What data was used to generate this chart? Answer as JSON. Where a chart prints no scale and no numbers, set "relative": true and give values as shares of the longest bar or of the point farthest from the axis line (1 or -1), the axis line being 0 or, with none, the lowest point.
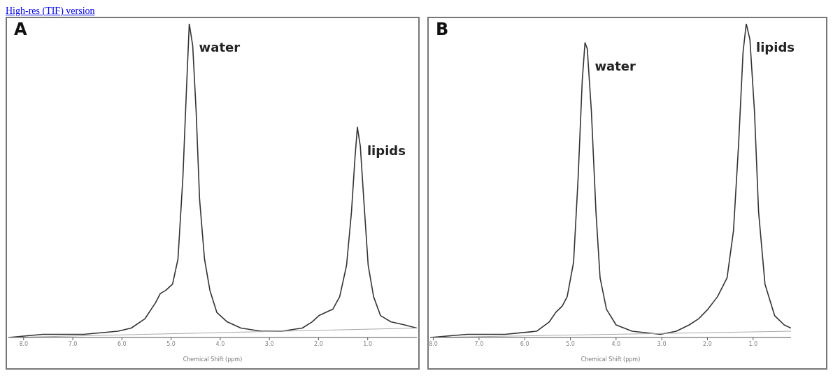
{
  "chart_data": [
    {
      "type": "line",
      "title": "A",
      "xlabel": "Chemical Shift (ppm)",
      "relative": true,
      "grid": false,
      "legend": false,
      "marker": "none",
      "line_style": "solid",
      "xlim": [
        8.31,
        0.0
      ],
      "xticks": [
        {
          "value": 8,
          "label": "8.0"
        },
        {
          "value": 7,
          "label": "7.0"
        },
        {
          "value": 6,
          "label": "6.0"
        },
        {
          "value": 5,
          "label": "5.0"
        },
        {
          "value": 4,
          "label": "4.0"
        },
        {
          "value": 3,
          "label": "3.0"
        },
        {
          "value": 2,
          "label": "2.0"
        },
        {
          "value": 1,
          "label": "1.0"
        }
      ],
      "annotations": [
        "High-res (TIF) version",
        {
          "text": "water",
          "x": 4.63,
          "y": 1.0
        },
        {
          "text": "lipids",
          "x": 1.21,
          "y": 0.67
        }
      ],
      "series": [
        {
          "color": "#333333",
          "x": [
            8.31,
            7.61,
            6.78,
            6.08,
            5.81,
            5.53,
            5.32,
            5.22,
            5.11,
            4.97,
            4.86,
            4.76,
            4.69,
            4.63,
            4.56,
            4.49,
            4.42,
            4.32,
            4.21,
            4.07,
            3.86,
            3.58,
            3.17,
            2.75,
            2.33,
            2.13,
            1.99,
            1.85,
            1.71,
            1.57,
            1.43,
            1.33,
            1.26,
            1.21,
            1.15,
            1.08,
            0.99,
            0.88,
            0.74,
            0.53,
            0.25,
            0.0
          ],
          "values": [
            0.0,
            0.01,
            0.01,
            0.02,
            0.03,
            0.06,
            0.11,
            0.14,
            0.15,
            0.17,
            0.25,
            0.51,
            0.78,
            1.0,
            0.93,
            0.72,
            0.44,
            0.25,
            0.15,
            0.08,
            0.05,
            0.03,
            0.02,
            0.02,
            0.03,
            0.05,
            0.07,
            0.08,
            0.09,
            0.13,
            0.23,
            0.4,
            0.57,
            0.67,
            0.61,
            0.44,
            0.23,
            0.13,
            0.07,
            0.05,
            0.04,
            0.03
          ]
        },
        {
          "color": "#aaaaaa",
          "x": [
            8.31,
            0.0
          ],
          "values": [
            0.0,
            0.03
          ]
        }
      ]
    },
    {
      "type": "line",
      "title": "B",
      "xlabel": "Chemical Shift (ppm)",
      "relative": true,
      "grid": false,
      "legend": false,
      "marker": "none",
      "line_style": "solid",
      "xlim": [
        8.07,
        0.17
      ],
      "xticks": [
        {
          "value": 8,
          "label": "8.0"
        },
        {
          "value": 7,
          "label": "7.0"
        },
        {
          "value": 6,
          "label": "6.0"
        },
        {
          "value": 5,
          "label": "5.0"
        },
        {
          "value": 4,
          "label": "4.0"
        },
        {
          "value": 3,
          "label": "3.0"
        },
        {
          "value": 2,
          "label": "2.0"
        },
        {
          "value": 1,
          "label": "1.0"
        }
      ],
      "annotations": [
        {
          "text": "water",
          "x": 4.68,
          "y": 0.94
        },
        {
          "text": "lipids",
          "x": 1.15,
          "y": 1.0
        }
      ],
      "series": [
        {
          "color": "#333333",
          "x": [
            8.07,
            7.26,
            6.43,
            5.74,
            5.46,
            5.32,
            5.18,
            5.07,
            4.93,
            4.83,
            4.74,
            4.68,
            4.63,
            4.54,
            4.44,
            4.35,
            4.21,
            4.0,
            3.65,
            3.03,
            2.68,
            2.4,
            2.19,
            1.99,
            1.78,
            1.57,
            1.43,
            1.32,
            1.22,
            1.15,
            1.07,
            0.97,
            0.88,
            0.74,
            0.53,
            0.32,
            0.17
          ],
          "values": [
            0.0,
            0.01,
            0.01,
            0.02,
            0.05,
            0.08,
            0.1,
            0.13,
            0.24,
            0.51,
            0.82,
            0.94,
            0.92,
            0.72,
            0.4,
            0.19,
            0.09,
            0.04,
            0.02,
            0.01,
            0.02,
            0.04,
            0.06,
            0.09,
            0.13,
            0.19,
            0.34,
            0.61,
            0.91,
            1.0,
            0.95,
            0.72,
            0.4,
            0.17,
            0.07,
            0.04,
            0.03
          ]
        },
        {
          "color": "#aaaaaa",
          "x": [
            8.07,
            0.17
          ],
          "values": [
            0.0,
            0.02
          ]
        }
      ]
    }
  ]
}
